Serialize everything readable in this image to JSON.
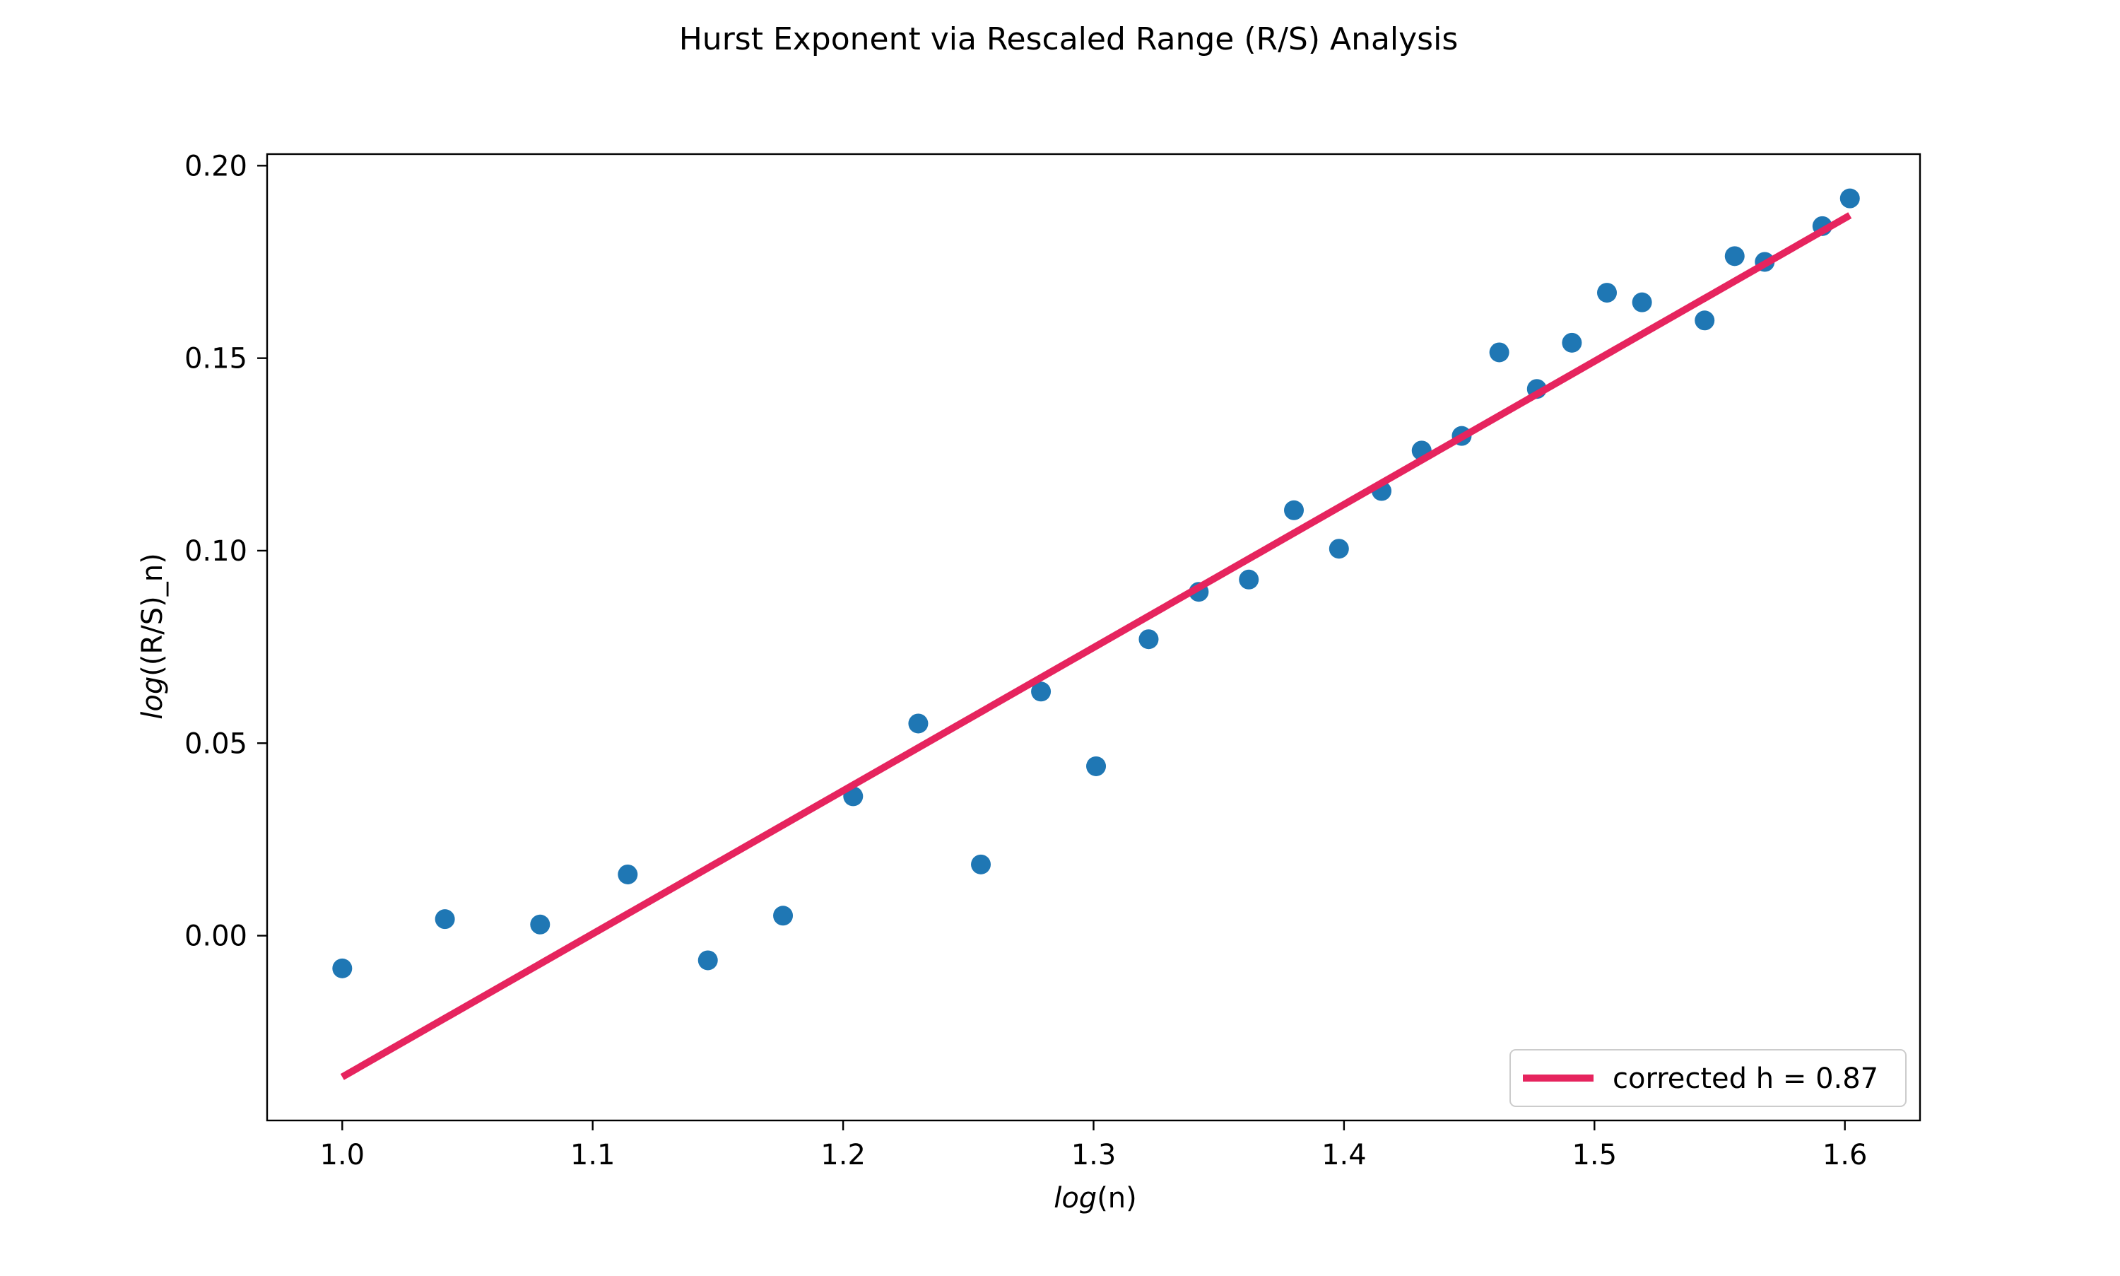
{
  "chart_data": {
    "type": "scatter",
    "title": "Hurst Exponent via Rescaled Range (R/S) Analysis",
    "xlabel": {
      "italic": "log",
      "rest": "(n)"
    },
    "ylabel": {
      "italic": "log",
      "rest": "((R/S)_n)"
    },
    "xlim": [
      0.97,
      1.63
    ],
    "ylim": [
      -0.048,
      0.203
    ],
    "xticks": [
      1.0,
      1.1,
      1.2,
      1.3,
      1.4,
      1.5,
      1.6
    ],
    "xtick_labels": [
      "1.0",
      "1.1",
      "1.2",
      "1.3",
      "1.4",
      "1.5",
      "1.6"
    ],
    "yticks": [
      0.0,
      0.05,
      0.1,
      0.15,
      0.2
    ],
    "ytick_labels": [
      "0.00",
      "0.05",
      "0.10",
      "0.15",
      "0.20"
    ],
    "grid": false,
    "legend_position": "lower-right",
    "series": [
      {
        "kind": "scatter",
        "color": "#1f77b4",
        "points": [
          [
            1.0,
            -0.0085
          ],
          [
            1.041,
            0.0043
          ],
          [
            1.079,
            0.0029
          ],
          [
            1.114,
            0.0159
          ],
          [
            1.146,
            -0.0064
          ],
          [
            1.176,
            0.0052
          ],
          [
            1.204,
            0.0362
          ],
          [
            1.23,
            0.0551
          ],
          [
            1.255,
            0.0185
          ],
          [
            1.279,
            0.0634
          ],
          [
            1.301,
            0.044
          ],
          [
            1.322,
            0.077
          ],
          [
            1.342,
            0.0893
          ],
          [
            1.362,
            0.0925
          ],
          [
            1.38,
            0.1105
          ],
          [
            1.398,
            0.1005
          ],
          [
            1.415,
            0.1155
          ],
          [
            1.431,
            0.126
          ],
          [
            1.447,
            0.1298
          ],
          [
            1.462,
            0.1515
          ],
          [
            1.477,
            0.142
          ],
          [
            1.491,
            0.154
          ],
          [
            1.505,
            0.167
          ],
          [
            1.519,
            0.1645
          ],
          [
            1.544,
            0.1598
          ],
          [
            1.556,
            0.1765
          ],
          [
            1.568,
            0.175
          ],
          [
            1.591,
            0.1843
          ],
          [
            1.602,
            0.1915
          ]
        ]
      },
      {
        "kind": "line",
        "name": "corrected h = 0.87",
        "color": "#e6245e",
        "points": [
          [
            1.0,
            -0.0367
          ],
          [
            1.602,
            0.1871
          ]
        ]
      }
    ]
  }
}
